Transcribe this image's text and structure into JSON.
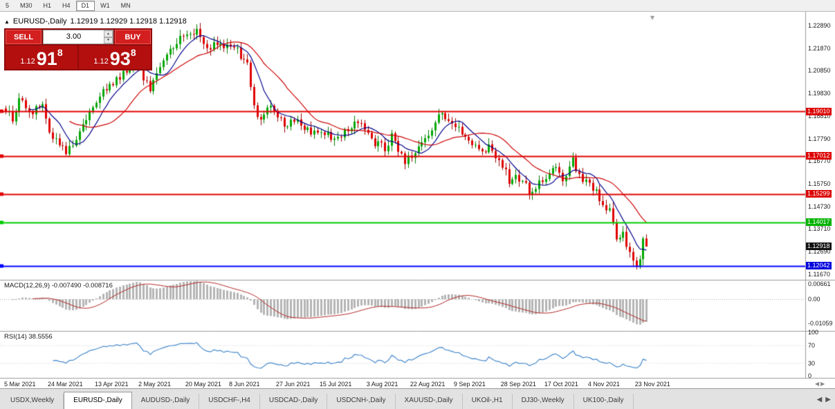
{
  "toolbar": {
    "timeframes": [
      {
        "label": "5",
        "active": false
      },
      {
        "label": "M30",
        "active": false
      },
      {
        "label": "H1",
        "active": false
      },
      {
        "label": "H4",
        "active": false
      },
      {
        "label": "D1",
        "active": true
      },
      {
        "label": "W1",
        "active": false
      },
      {
        "label": "MN",
        "active": false
      }
    ]
  },
  "chart": {
    "title_symbol": "EURUSD-,Daily",
    "title_ohlc": "1.12919 1.12929 1.12918 1.12918",
    "trade_panel": {
      "sell_label": "SELL",
      "buy_label": "BUY",
      "volume": "3.00",
      "bid": {
        "prefix": "1.12",
        "big": "91",
        "sup": "8"
      },
      "ask": {
        "prefix": "1.12",
        "big": "93",
        "sup": "8"
      }
    }
  },
  "price_axis": {
    "ticks": [
      {
        "label": "1.22890",
        "price": 1.2289
      },
      {
        "label": "1.21870",
        "price": 1.2187
      },
      {
        "label": "1.20850",
        "price": 1.2085
      },
      {
        "label": "1.19830",
        "price": 1.1983
      },
      {
        "label": "1.18810",
        "price": 1.1881
      },
      {
        "label": "1.17790",
        "price": 1.1779
      },
      {
        "label": "1.16770",
        "price": 1.1677
      },
      {
        "label": "1.15750",
        "price": 1.1575
      },
      {
        "label": "1.14730",
        "price": 1.1473
      },
      {
        "label": "1.13710",
        "price": 1.1371
      },
      {
        "label": "1.12690",
        "price": 1.1269
      },
      {
        "label": "1.11670",
        "price": 1.1167
      }
    ],
    "tags": [
      {
        "label": "1.19010",
        "price": 1.1901,
        "color": "#dd0000"
      },
      {
        "label": "1.17012",
        "price": 1.17012,
        "color": "#dd0000"
      },
      {
        "label": "1.15299",
        "price": 1.15299,
        "color": "#dd0000"
      },
      {
        "label": "1.14017",
        "price": 1.14017,
        "color": "#00b200"
      },
      {
        "label": "1.12918",
        "price": 1.12918,
        "color": "#111111"
      },
      {
        "label": "1.12042",
        "price": 1.12042,
        "color": "#0000dd"
      }
    ]
  },
  "macd": {
    "name": "MACD(12,26,9)",
    "value": "-0.007490",
    "signal": "-0.008716",
    "axis": [
      "0.00661",
      "0.00",
      "-0.01059"
    ]
  },
  "rsi": {
    "name": "RSI(14)",
    "value": "38.5556",
    "axis": [
      "100",
      "70",
      "30",
      "0"
    ]
  },
  "date_axis": [
    {
      "label": "5 Mar 2021",
      "bar": 0
    },
    {
      "label": "24 Mar 2021",
      "bar": 13
    },
    {
      "label": "13 Apr 2021",
      "bar": 27
    },
    {
      "label": "2 May 2021",
      "bar": 40
    },
    {
      "label": "20 May 2021",
      "bar": 54
    },
    {
      "label": "8 Jun 2021",
      "bar": 67
    },
    {
      "label": "27 Jun 2021",
      "bar": 81
    },
    {
      "label": "15 Jul 2021",
      "bar": 94
    },
    {
      "label": "3 Aug 2021",
      "bar": 108
    },
    {
      "label": "22 Aug 2021",
      "bar": 121
    },
    {
      "label": "9 Sep 2021",
      "bar": 134
    },
    {
      "label": "28 Sep 2021",
      "bar": 148
    },
    {
      "label": "17 Oct 2021",
      "bar": 161
    },
    {
      "label": "4 Nov 2021",
      "bar": 174
    },
    {
      "label": "23 Nov 2021",
      "bar": 188
    }
  ],
  "tabs": [
    {
      "label": "USDX,Weekly",
      "active": false
    },
    {
      "label": "EURUSD-,Daily",
      "active": true
    },
    {
      "label": "AUDUSD-,Daily",
      "active": false
    },
    {
      "label": "USDCHF-,H4",
      "active": false
    },
    {
      "label": "USDCAD-,Daily",
      "active": false
    },
    {
      "label": "USDCNH-,Daily",
      "active": false
    },
    {
      "label": "XAUUSD-,Daily",
      "active": false
    },
    {
      "label": "UKOil-,H1",
      "active": false
    },
    {
      "label": "DJ30-,Weekly",
      "active": false
    },
    {
      "label": "UK100-,Daily",
      "active": false
    }
  ],
  "chart_data": {
    "type": "candlestick",
    "symbol": "EURUSD-",
    "timeframe": "Daily",
    "bars": 192,
    "x_range": [
      "5 Mar 2021",
      "30 Nov 2021"
    ],
    "y_range": [
      1.1167,
      1.2289
    ],
    "last_close": 1.12918,
    "bid": 1.12918,
    "ask": 1.12938,
    "up_color": "#00a800",
    "down_color": "#e00000",
    "price_path": [
      [
        0,
        1.1915
      ],
      [
        2,
        1.185
      ],
      [
        4,
        1.1975
      ],
      [
        7,
        1.1895
      ],
      [
        11,
        1.1935
      ],
      [
        13,
        1.181
      ],
      [
        18,
        1.1712
      ],
      [
        21,
        1.179
      ],
      [
        24,
        1.1875
      ],
      [
        27,
        1.195
      ],
      [
        32,
        1.2035
      ],
      [
        36,
        1.209
      ],
      [
        39,
        1.2125
      ],
      [
        41,
        1.206
      ],
      [
        43,
        1.201
      ],
      [
        47,
        1.215
      ],
      [
        52,
        1.2225
      ],
      [
        57,
        1.2262
      ],
      [
        60,
        1.2195
      ],
      [
        64,
        1.2215
      ],
      [
        69,
        1.2175
      ],
      [
        72,
        1.2125
      ],
      [
        74,
        1.193
      ],
      [
        75,
        1.186
      ],
      [
        79,
        1.1925
      ],
      [
        83,
        1.1848
      ],
      [
        87,
        1.1868
      ],
      [
        91,
        1.18
      ],
      [
        95,
        1.1812
      ],
      [
        98,
        1.1772
      ],
      [
        102,
        1.1822
      ],
      [
        105,
        1.1868
      ],
      [
        110,
        1.1758
      ],
      [
        113,
        1.1735
      ],
      [
        115,
        1.1795
      ],
      [
        119,
        1.1668
      ],
      [
        121,
        1.1705
      ],
      [
        124,
        1.1748
      ],
      [
        129,
        1.1872
      ],
      [
        130,
        1.188
      ],
      [
        134,
        1.1822
      ],
      [
        137,
        1.18
      ],
      [
        141,
        1.1722
      ],
      [
        144,
        1.1742
      ],
      [
        147,
        1.1688
      ],
      [
        150,
        1.1592
      ],
      [
        152,
        1.1605
      ],
      [
        157,
        1.1532
      ],
      [
        161,
        1.1612
      ],
      [
        164,
        1.1648
      ],
      [
        166,
        1.1592
      ],
      [
        169,
        1.1682
      ],
      [
        171,
        1.1602
      ],
      [
        175,
        1.1558
      ],
      [
        178,
        1.1478
      ],
      [
        180,
        1.145
      ],
      [
        182,
        1.1322
      ],
      [
        184,
        1.1372
      ],
      [
        185,
        1.1288
      ],
      [
        187,
        1.1238
      ],
      [
        188,
        1.119
      ],
      [
        189,
        1.1248
      ],
      [
        190,
        1.1312
      ],
      [
        191,
        1.1292
      ]
    ],
    "hlines": [
      {
        "price": 1.1901,
        "color": "#e00000",
        "width": 2
      },
      {
        "price": 1.17012,
        "color": "#e00000",
        "width": 2
      },
      {
        "price": 1.15299,
        "color": "#e00000",
        "width": 2
      },
      {
        "price": 1.14017,
        "color": "#00cc00",
        "width": 2
      },
      {
        "price": 1.12042,
        "color": "#0000ff",
        "width": 2
      }
    ],
    "moving_averages": [
      {
        "period": 8,
        "color": "#00008b"
      },
      {
        "period": 20,
        "color": "#cc0000"
      }
    ],
    "macd": {
      "fast": 12,
      "slow": 26,
      "signal": 9,
      "last_value": -0.00749,
      "last_signal": -0.008716,
      "histogram_color": "#b4b4b4",
      "signal_color": "#b22222"
    },
    "rsi": {
      "period": 14,
      "last_value": 38.5556,
      "color": "#4488cc"
    }
  }
}
